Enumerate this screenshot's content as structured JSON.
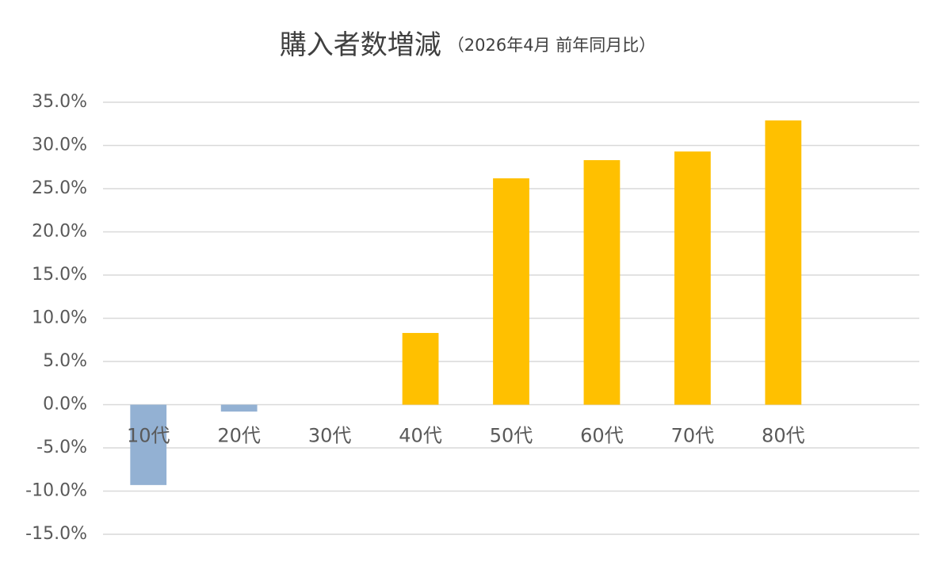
{
  "chart_data": {
    "type": "bar",
    "title": "購入者数増減",
    "subtitle": "（2026年4月 前年同月比）",
    "categories": [
      "10代",
      "20代",
      "30代",
      "40代",
      "50代",
      "60代",
      "70代",
      "80代",
      null
    ],
    "values": [
      -9.3,
      -0.8,
      0,
      8.3,
      26.2,
      28.3,
      29.3,
      32.9,
      null
    ],
    "color": "#ffc000",
    "negative_color": "#93b1d3",
    "ylim": [
      -15,
      35
    ],
    "yticks": [
      {
        "value": -15,
        "label": "-15.0%"
      },
      {
        "value": -10,
        "label": "-10.0%"
      },
      {
        "value": -5,
        "label": "-5.0%"
      },
      {
        "value": 0,
        "label": "0.0%"
      },
      {
        "value": 5,
        "label": "5.0%"
      },
      {
        "value": 10,
        "label": "10.0%"
      },
      {
        "value": 15,
        "label": "15.0%"
      },
      {
        "value": 20,
        "label": "20.0%"
      },
      {
        "value": 25,
        "label": "25.0%"
      },
      {
        "value": 30,
        "label": "30.0%"
      },
      {
        "value": 35,
        "label": "35.0%"
      }
    ],
    "grid": true
  }
}
